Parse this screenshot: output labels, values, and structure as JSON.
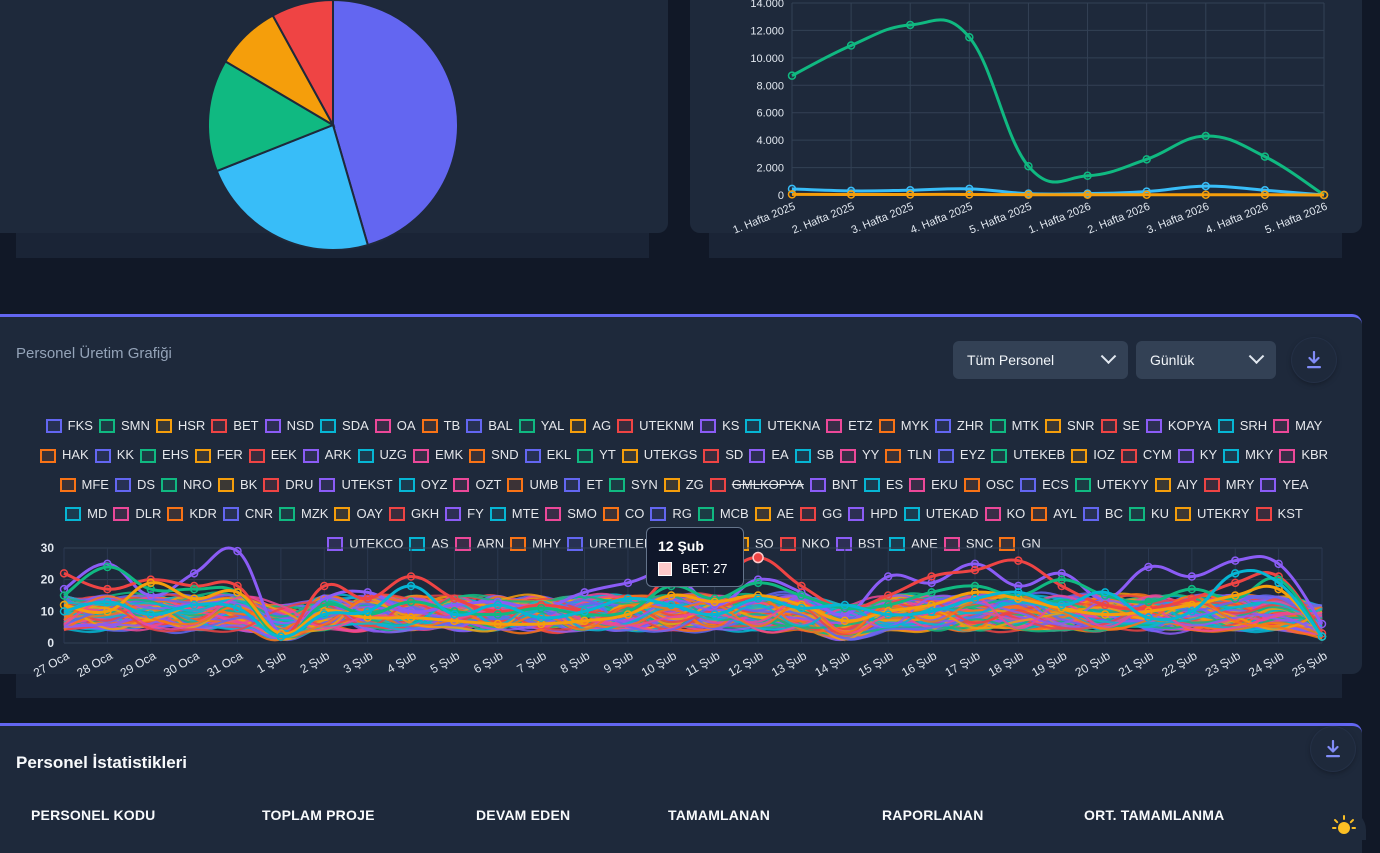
{
  "colors": {
    "background": "#111827",
    "card": "#1e293b",
    "accent": "#6366f1",
    "teal": "#10b981",
    "sky": "#38bdf8",
    "amber": "#f59e0b",
    "red": "#ef4444"
  },
  "pie": {
    "slices": [
      {
        "value": 45.5,
        "color": "#6366f1"
      },
      {
        "value": 23.5,
        "color": "#38bdf8"
      },
      {
        "value": 14.5,
        "color": "#10b981"
      },
      {
        "value": 8.5,
        "color": "#f59e0b"
      },
      {
        "value": 8.0,
        "color": "#ef4444"
      }
    ]
  },
  "weekly_chart": {
    "type": "line",
    "yticks": [
      "14.000",
      "12.000",
      "10.000",
      "8.000",
      "6.000",
      "4.000",
      "2.000",
      "0"
    ],
    "ylim": [
      0,
      14000
    ],
    "categories": [
      "1. Hafta 2025",
      "2. Hafta 2025",
      "3. Hafta 2025",
      "4. Hafta 2025",
      "5. Hafta 2025",
      "1. Hafta 2026",
      "2. Hafta 2026",
      "3. Hafta 2026",
      "4. Hafta 2026",
      "5. Hafta 2026"
    ],
    "series": [
      {
        "color": "#10b981",
        "values": [
          8700,
          10900,
          12400,
          11500,
          2100,
          1400,
          2600,
          4300,
          2800,
          0
        ]
      },
      {
        "color": "#38bdf8",
        "values": [
          450,
          300,
          350,
          450,
          100,
          100,
          250,
          650,
          350,
          0
        ]
      },
      {
        "color": "#f59e0b",
        "values": [
          50,
          40,
          40,
          40,
          20,
          20,
          20,
          20,
          20,
          0
        ]
      }
    ]
  },
  "production": {
    "title": "Personel Üretim Grafiği",
    "select_personnel": "Tüm Personel",
    "select_period": "Günlük",
    "download_icon": "download-icon",
    "legend": [
      {
        "code": "FKS",
        "color": "#6366f1"
      },
      {
        "code": "SMN",
        "color": "#10b981"
      },
      {
        "code": "HSR",
        "color": "#f59e0b"
      },
      {
        "code": "BET",
        "color": "#ef4444"
      },
      {
        "code": "NSD",
        "color": "#8b5cf6"
      },
      {
        "code": "SDA",
        "color": "#06b6d4"
      },
      {
        "code": "OA",
        "color": "#ec4899"
      },
      {
        "code": "TB",
        "color": "#f97316"
      },
      {
        "code": "BAL",
        "color": "#6366f1"
      },
      {
        "code": "YAL",
        "color": "#10b981"
      },
      {
        "code": "AG",
        "color": "#f59e0b"
      },
      {
        "code": "UTEKNM",
        "color": "#ef4444"
      },
      {
        "code": "KS",
        "color": "#8b5cf6"
      },
      {
        "code": "UTEKNA",
        "color": "#06b6d4"
      },
      {
        "code": "ETZ",
        "color": "#ec4899"
      },
      {
        "code": "MYK",
        "color": "#f97316"
      },
      {
        "code": "ZHR",
        "color": "#6366f1"
      },
      {
        "code": "MTK",
        "color": "#10b981"
      },
      {
        "code": "SNR",
        "color": "#f59e0b"
      },
      {
        "code": "SE",
        "color": "#ef4444"
      },
      {
        "code": "KOPYA",
        "color": "#8b5cf6"
      },
      {
        "code": "SRH",
        "color": "#06b6d4"
      },
      {
        "code": "MAY",
        "color": "#ec4899"
      },
      {
        "code": "HAK",
        "color": "#f97316"
      },
      {
        "code": "KK",
        "color": "#6366f1"
      },
      {
        "code": "EHS",
        "color": "#10b981"
      },
      {
        "code": "FER",
        "color": "#f59e0b"
      },
      {
        "code": "EEK",
        "color": "#ef4444"
      },
      {
        "code": "ARK",
        "color": "#8b5cf6"
      },
      {
        "code": "UZG",
        "color": "#06b6d4"
      },
      {
        "code": "EMK",
        "color": "#ec4899"
      },
      {
        "code": "SND",
        "color": "#f97316"
      },
      {
        "code": "EKL",
        "color": "#6366f1"
      },
      {
        "code": "YT",
        "color": "#10b981"
      },
      {
        "code": "UTEKGS",
        "color": "#f59e0b"
      },
      {
        "code": "SD",
        "color": "#ef4444"
      },
      {
        "code": "EA",
        "color": "#8b5cf6"
      },
      {
        "code": "SB",
        "color": "#06b6d4"
      },
      {
        "code": "YY",
        "color": "#ec4899"
      },
      {
        "code": "TLN",
        "color": "#f97316"
      },
      {
        "code": "EYZ",
        "color": "#6366f1"
      },
      {
        "code": "UTEKEB",
        "color": "#10b981"
      },
      {
        "code": "IOZ",
        "color": "#f59e0b"
      },
      {
        "code": "CYM",
        "color": "#ef4444"
      },
      {
        "code": "KY",
        "color": "#8b5cf6"
      },
      {
        "code": "MKY",
        "color": "#06b6d4"
      },
      {
        "code": "KBR",
        "color": "#ec4899"
      },
      {
        "code": "MFE",
        "color": "#f97316"
      },
      {
        "code": "DS",
        "color": "#6366f1"
      },
      {
        "code": "NRO",
        "color": "#10b981"
      },
      {
        "code": "BK",
        "color": "#f59e0b"
      },
      {
        "code": "DRU",
        "color": "#ef4444"
      },
      {
        "code": "UTEKST",
        "color": "#8b5cf6"
      },
      {
        "code": "OYZ",
        "color": "#06b6d4"
      },
      {
        "code": "OZT",
        "color": "#ec4899"
      },
      {
        "code": "UMB",
        "color": "#f97316"
      },
      {
        "code": "ET",
        "color": "#6366f1"
      },
      {
        "code": "SYN",
        "color": "#10b981"
      },
      {
        "code": "ZG",
        "color": "#f59e0b"
      },
      {
        "code": "GMLKOPYA",
        "color": "#ef4444",
        "hidden": true
      },
      {
        "code": "BNT",
        "color": "#8b5cf6"
      },
      {
        "code": "ES",
        "color": "#06b6d4"
      },
      {
        "code": "EKU",
        "color": "#ec4899"
      },
      {
        "code": "OSC",
        "color": "#f97316"
      },
      {
        "code": "ECS",
        "color": "#6366f1"
      },
      {
        "code": "UTEKYY",
        "color": "#10b981"
      },
      {
        "code": "AIY",
        "color": "#f59e0b"
      },
      {
        "code": "MRY",
        "color": "#ef4444"
      },
      {
        "code": "YEA",
        "color": "#8b5cf6"
      },
      {
        "code": "MD",
        "color": "#06b6d4"
      },
      {
        "code": "DLR",
        "color": "#ec4899"
      },
      {
        "code": "KDR",
        "color": "#f97316"
      },
      {
        "code": "CNR",
        "color": "#6366f1"
      },
      {
        "code": "MZK",
        "color": "#10b981"
      },
      {
        "code": "OAY",
        "color": "#f59e0b"
      },
      {
        "code": "GKH",
        "color": "#ef4444"
      },
      {
        "code": "FY",
        "color": "#8b5cf6"
      },
      {
        "code": "MTE",
        "color": "#06b6d4"
      },
      {
        "code": "SMO",
        "color": "#ec4899"
      },
      {
        "code": "CO",
        "color": "#f97316"
      },
      {
        "code": "RG",
        "color": "#6366f1"
      },
      {
        "code": "MCB",
        "color": "#10b981"
      },
      {
        "code": "AE",
        "color": "#f59e0b"
      },
      {
        "code": "GG",
        "color": "#ef4444"
      },
      {
        "code": "HPD",
        "color": "#8b5cf6"
      },
      {
        "code": "UTEKAD",
        "color": "#06b6d4"
      },
      {
        "code": "KO",
        "color": "#ec4899"
      },
      {
        "code": "AYL",
        "color": "#f97316"
      },
      {
        "code": "BC",
        "color": "#6366f1"
      },
      {
        "code": "KU",
        "color": "#10b981"
      },
      {
        "code": "UTEKRY",
        "color": "#f59e0b"
      },
      {
        "code": "KST",
        "color": "#ef4444"
      },
      {
        "code": "UTEKCO",
        "color": "#8b5cf6"
      },
      {
        "code": "AS",
        "color": "#06b6d4"
      },
      {
        "code": "ARN",
        "color": "#ec4899"
      },
      {
        "code": "MHY",
        "color": "#f97316"
      },
      {
        "code": "URETILEMEZ",
        "color": "#6366f1"
      },
      {
        "code": "ABO",
        "color": "#10b981"
      },
      {
        "code": "SO",
        "color": "#f59e0b"
      },
      {
        "code": "NKO",
        "color": "#ef4444"
      },
      {
        "code": "BST",
        "color": "#8b5cf6"
      },
      {
        "code": "ANE",
        "color": "#06b6d4"
      },
      {
        "code": "SNC",
        "color": "#ec4899"
      },
      {
        "code": "GN",
        "color": "#f97316"
      }
    ],
    "chart": {
      "type": "line",
      "ylim": [
        0,
        30
      ],
      "yticks": [
        "30",
        "20",
        "10",
        "0"
      ],
      "categories": [
        "27 Oca",
        "28 Oca",
        "29 Oca",
        "30 Oca",
        "31 Oca",
        "1 Şub",
        "2 Şub",
        "3 Şub",
        "4 Şub",
        "5 Şub",
        "6 Şub",
        "7 Şub",
        "8 Şub",
        "9 Şub",
        "10 Şub",
        "11 Şub",
        "12 Şub",
        "13 Şub",
        "14 Şub",
        "15 Şub",
        "16 Şub",
        "17 Şub",
        "18 Şub",
        "19 Şub",
        "20 Şub",
        "21 Şub",
        "22 Şub",
        "23 Şub",
        "24 Şub",
        "25 Şub"
      ],
      "highlight_series": [
        {
          "name": "FKS",
          "color": "#8b5cf6",
          "values": [
            17,
            25,
            15,
            22,
            29,
            3,
            14,
            16,
            10,
            12,
            13,
            11,
            16,
            19,
            22,
            12,
            20,
            16,
            9,
            21,
            19,
            25,
            18,
            22,
            14,
            24,
            21,
            26,
            25,
            6
          ]
        },
        {
          "name": "BET",
          "color": "#ef4444",
          "values": [
            22,
            17,
            20,
            18,
            18,
            2,
            18,
            14,
            21,
            14,
            10,
            12,
            10,
            9,
            21,
            20,
            27,
            18,
            11,
            15,
            21,
            23,
            26,
            18,
            12,
            11,
            14,
            19,
            21,
            3
          ]
        },
        {
          "name": "SMN",
          "color": "#10b981",
          "values": [
            15,
            24,
            17,
            17,
            16,
            2,
            12,
            9,
            13,
            10,
            9,
            11,
            9,
            10,
            18,
            14,
            19,
            15,
            11,
            12,
            16,
            18,
            15,
            20,
            15,
            13,
            17,
            14,
            20,
            2
          ]
        },
        {
          "name": "HSR",
          "color": "#f59e0b",
          "values": [
            12,
            10,
            19,
            14,
            16,
            3,
            10,
            8,
            8,
            7,
            6,
            6,
            7,
            9,
            15,
            13,
            15,
            12,
            7,
            10,
            12,
            16,
            14,
            11,
            9,
            10,
            12,
            15,
            17,
            2
          ]
        },
        {
          "name": "SDA",
          "color": "#06b6d4",
          "values": [
            10,
            13,
            9,
            12,
            11,
            2,
            9,
            10,
            18,
            9,
            12,
            8,
            10,
            14,
            12,
            9,
            14,
            11,
            12,
            9,
            10,
            14,
            16,
            12,
            16,
            8,
            10,
            22,
            19,
            2
          ]
        }
      ],
      "tooltip": {
        "title": "12 Şub",
        "label": "BET: 27",
        "color": "#fecaca"
      }
    }
  },
  "stats": {
    "title": "Personel İstatistikleri",
    "download_icon": "download-icon",
    "columns": [
      "PERSONEL KODU",
      "TOPLAM PROJE",
      "DEVAM EDEN",
      "TAMAMLANAN",
      "RAPORLANAN",
      "ORT. TAMAMLANMA"
    ]
  },
  "theme_toggle_icon": "sun-icon"
}
